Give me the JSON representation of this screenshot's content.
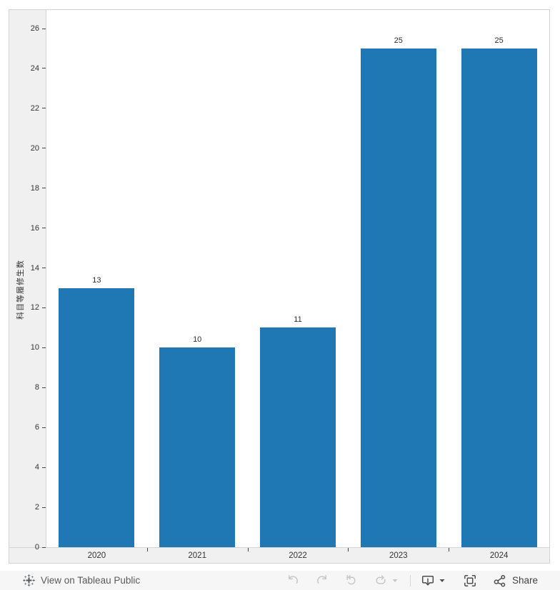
{
  "chart_data": {
    "type": "bar",
    "title": "",
    "categories": [
      "2020",
      "2021",
      "2022",
      "2023",
      "2024"
    ],
    "values": [
      13,
      10,
      11,
      25,
      25
    ],
    "bar_labels": [
      "13",
      "10",
      "11",
      "25",
      "25"
    ],
    "xlabel": "",
    "ylabel": "科目等履修生数",
    "y_ticks": [
      0,
      2,
      4,
      6,
      8,
      10,
      12,
      14,
      16,
      18,
      20,
      22,
      24,
      26
    ],
    "ylim": [
      0,
      27
    ],
    "grid": false,
    "legend": "none",
    "bar_color": "#1f77b4"
  },
  "colors": {
    "bar": "#1f77b4",
    "axis_band_bg": "#f0f0f0",
    "chart_border": "#d4d4d4",
    "tick_text": "#333333",
    "footer_bg": "#f6f6f6",
    "icon_active": "#4d4d4d",
    "icon_disabled": "#c7c7c7"
  },
  "footer": {
    "view_link": "View on Tableau Public",
    "share_label": "Share",
    "toolbar_icons": [
      "undo",
      "redo",
      "revert",
      "refresh",
      "refresh-menu-caret",
      "download",
      "download-menu-caret",
      "fullscreen",
      "share"
    ]
  }
}
